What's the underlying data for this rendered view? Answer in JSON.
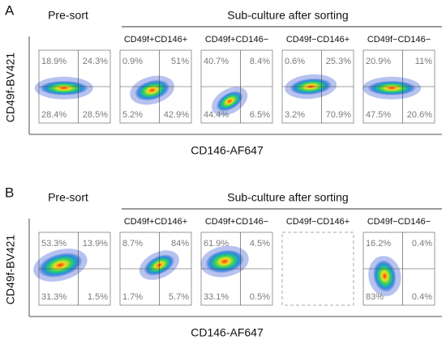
{
  "panels": [
    {
      "label": "A",
      "presort": "Pre-sort",
      "subculture": "Sub-culture after sorting",
      "y_axis": "CD49f-BV421",
      "x_axis": "CD146-AF647",
      "plots": [
        {
          "quadrants": [
            "18.9%",
            "24.3%",
            "28.4%",
            "28.5%"
          ]
        },
        {
          "title": "CD49f+CD146+",
          "quadrants": [
            "0.9%",
            "51%",
            "5.2%",
            "42.9%"
          ]
        },
        {
          "title": "CD49f+CD146−",
          "quadrants": [
            "40.7%",
            "8.4%",
            "44.4%",
            "6.5%"
          ]
        },
        {
          "title": "CD49f−CD146+",
          "quadrants": [
            "0.6%",
            "25.3%",
            "3.2%",
            "70.9%"
          ]
        },
        {
          "title": "CD49f−CD146−",
          "quadrants": [
            "20.9%",
            "11%",
            "47.5%",
            "20.6%"
          ]
        }
      ]
    },
    {
      "label": "B",
      "presort": "Pre-sort",
      "subculture": "Sub-culture after sorting",
      "y_axis": "CD49f-BV421",
      "x_axis": "CD146-AF647",
      "plots": [
        {
          "quadrants": [
            "53.3%",
            "13.9%",
            "31.3%",
            "1.5%"
          ]
        },
        {
          "title": "CD49f+CD146+",
          "quadrants": [
            "8.7%",
            "84%",
            "1.7%",
            "5.7%"
          ]
        },
        {
          "title": "CD49f+CD146−",
          "quadrants": [
            "61.9%",
            "4.5%",
            "33.1%",
            "0.5%"
          ]
        },
        {
          "title": "CD49f−CD146+",
          "empty": true
        },
        {
          "title": "CD49f−CD146−",
          "quadrants": [
            "16.2%",
            "0.4%",
            "83%",
            "0.4%"
          ]
        }
      ]
    }
  ]
}
